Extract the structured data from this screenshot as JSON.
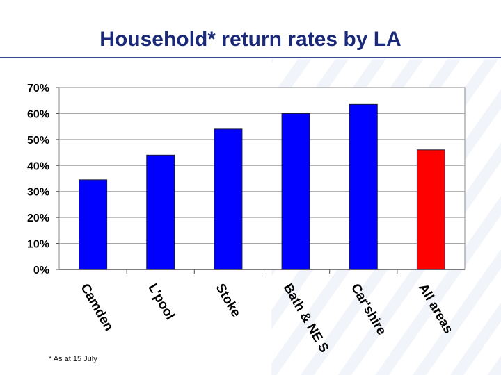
{
  "title": "Household* return rates by LA",
  "footnote": "* As at 15 July",
  "colors": {
    "bar": "#0000ff",
    "highlight": "#ff0000",
    "title": "#1a2a78",
    "grid": "#9a9a9a"
  },
  "chart_data": {
    "type": "bar",
    "categories": [
      "Camden",
      "L'pool",
      "Stoke",
      "Bath & NE S",
      "Car'shire",
      "All areas"
    ],
    "values": [
      34.5,
      44,
      54,
      60,
      63.5,
      46
    ],
    "highlight_index": 5,
    "yticks": [
      "0%",
      "10%",
      "20%",
      "30%",
      "40%",
      "50%",
      "60%",
      "70%"
    ],
    "ylim": [
      0,
      70
    ],
    "grid": true,
    "title": "Household* return rates by LA",
    "xlabel": "",
    "ylabel": ""
  }
}
